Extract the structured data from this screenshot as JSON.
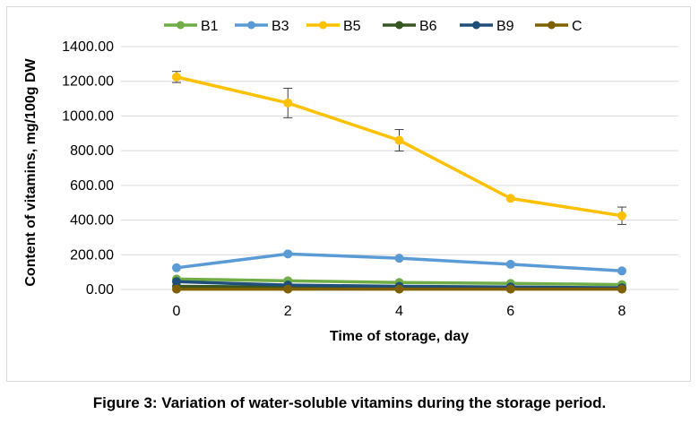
{
  "caption": "Figure 3: Variation of water-soluble vitamins during the storage period.",
  "chart_data": {
    "type": "line",
    "xlabel": "Time of storage, day",
    "ylabel": "Content of vitamins, mg/100g DW",
    "x": [
      0,
      2,
      4,
      6,
      8
    ],
    "x_ticks": [
      "0",
      "2",
      "4",
      "6",
      "8"
    ],
    "ylim": [
      0,
      1400
    ],
    "y_ticks": [
      "0.00",
      "200.00",
      "400.00",
      "600.00",
      "800.00",
      "1000.00",
      "1200.00",
      "1400.00"
    ],
    "grid": true,
    "legend_position": "top",
    "series": [
      {
        "name": "B1",
        "color": "#70ad47",
        "values": [
          60,
          50,
          40,
          35,
          28
        ],
        "error": [
          0,
          0,
          0,
          0,
          0
        ]
      },
      {
        "name": "B3",
        "color": "#5b9bd5",
        "values": [
          125,
          205,
          180,
          145,
          107
        ],
        "error": [
          0,
          0,
          0,
          0,
          0
        ]
      },
      {
        "name": "B5",
        "color": "#ffc000",
        "values": [
          1225,
          1075,
          860,
          525,
          425
        ],
        "error": [
          32,
          85,
          62,
          0,
          50
        ]
      },
      {
        "name": "B6",
        "color": "#375623",
        "values": [
          18,
          14,
          12,
          10,
          8
        ],
        "error": [
          0,
          0,
          0,
          0,
          0
        ]
      },
      {
        "name": "B9",
        "color": "#1f4e79",
        "values": [
          45,
          25,
          18,
          14,
          10
        ],
        "error": [
          0,
          0,
          0,
          0,
          0
        ]
      },
      {
        "name": "C",
        "color": "#7f6000",
        "values": [
          2,
          2,
          2,
          2,
          2
        ],
        "error": [
          0,
          0,
          0,
          0,
          0
        ]
      }
    ]
  }
}
